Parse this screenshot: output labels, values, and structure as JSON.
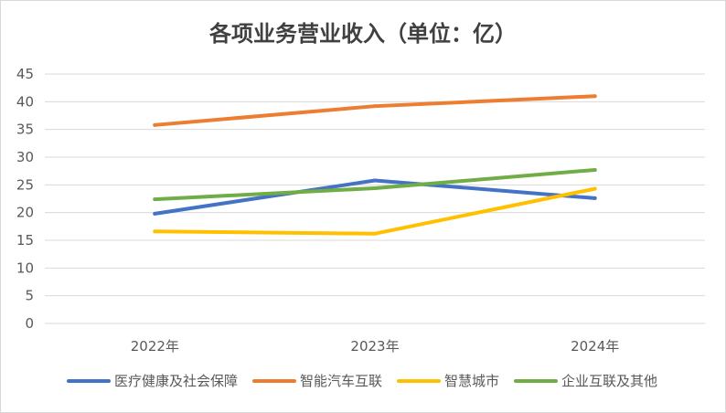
{
  "chart_data": {
    "type": "line",
    "title": "各项业务营业收入（单位：亿）",
    "xlabel": "",
    "ylabel": "",
    "categories": [
      "2022年",
      "2023年",
      "2024年"
    ],
    "ylim": [
      0,
      45
    ],
    "yticks": [
      0,
      5,
      10,
      15,
      20,
      25,
      30,
      35,
      40,
      45
    ],
    "grid": true,
    "legend_position": "bottom",
    "series": [
      {
        "name": "医疗健康及社会保障",
        "color": "#4472C4",
        "values": [
          19.8,
          25.8,
          22.6
        ]
      },
      {
        "name": "智能汽车互联",
        "color": "#ED7D31",
        "values": [
          35.8,
          39.2,
          41.0
        ]
      },
      {
        "name": "智慧城市",
        "color": "#FFC000",
        "values": [
          16.6,
          16.2,
          24.3
        ]
      },
      {
        "name": "企业互联及其他",
        "color": "#70AD47",
        "values": [
          22.4,
          24.4,
          27.7
        ]
      }
    ]
  }
}
